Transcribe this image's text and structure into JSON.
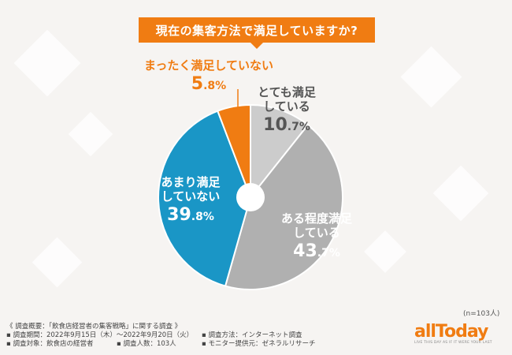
{
  "chart_data": {
    "type": "pie",
    "title": "現在の集客方法で満足していますか?",
    "categories": [
      "とても満足している",
      "ある程度満足している",
      "あまり満足していない",
      "まったく満足していない"
    ],
    "values": [
      10.7,
      43.7,
      39.8,
      5.8
    ],
    "value_labels": [
      {
        "int": "10",
        "dec": ".7%"
      },
      {
        "int": "43",
        "dec": ".7%"
      },
      {
        "int": "39",
        "dec": ".8%"
      },
      {
        "int": "5",
        "dec": ".8%"
      }
    ],
    "label_lines": [
      [
        "とても満足",
        "している"
      ],
      [
        "ある程度満足",
        "している"
      ],
      [
        "あまり満足",
        "していない"
      ],
      [
        "まったく満足していない"
      ]
    ],
    "colors": [
      "#cccccc",
      "#b0b0b0",
      "#1a96c6",
      "#f07c12"
    ],
    "label_colors": [
      "#555555",
      "#ffffff",
      "#ffffff",
      "#f07c12"
    ],
    "sample_size": "(n=103人)"
  },
  "footer": {
    "summary": "《 調査概要：「飲食店経営者の集客戦略」に関する調査 》",
    "period": "▪ 調査期間：2022年9月15日（木）〜2022年9月20日（火）",
    "method": "▪ 調査方法：インターネット調査",
    "target": "▪ 調査対象：飲食店の経営者",
    "count": "▪ 調査人数：103人",
    "provider": "▪ モニター提供元：ゼネラルリサーチ"
  },
  "logo": {
    "wordmark": "allToday",
    "tagline": "LIVE THIS DAY AS IF IT WERE YOUR LAST"
  }
}
